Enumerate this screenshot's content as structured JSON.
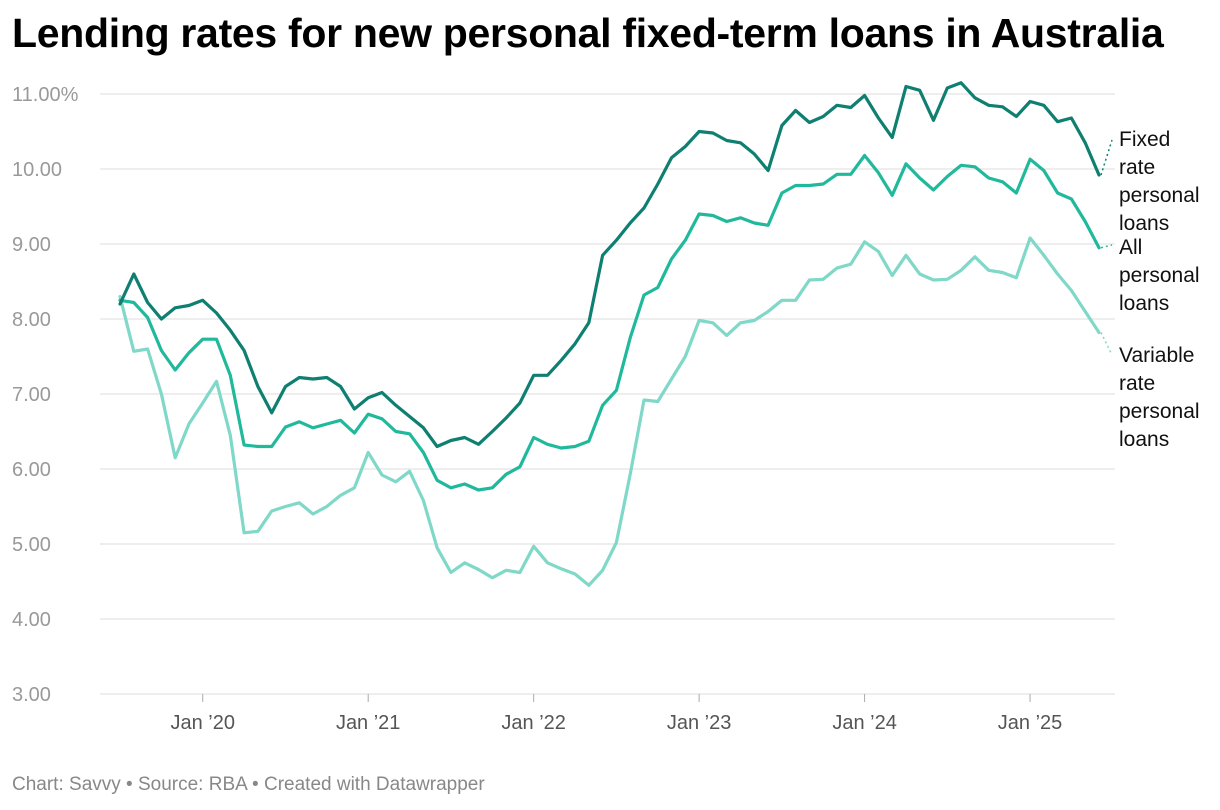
{
  "title": "Lending rates for new personal fixed-term loans in Australia",
  "footer": {
    "chart_credit": "Chart: Savvy",
    "source": "Source: RBA",
    "tool": "Created with Datawrapper",
    "separator": " • "
  },
  "colors": {
    "fixed": "#0e7f70",
    "all": "#21b99c",
    "variable": "#7fd8c8",
    "grid": "#dddddd",
    "axis_text": "#999999"
  },
  "chart_data": {
    "type": "line",
    "title": "Lending rates for new personal fixed-term loans in Australia",
    "xlabel": "",
    "ylabel": "",
    "ylim": [
      3.0,
      11.0
    ],
    "yticks": [
      {
        "value": 11,
        "label": "11.00%"
      },
      {
        "value": 10,
        "label": "10.00"
      },
      {
        "value": 9,
        "label": "9.00"
      },
      {
        "value": 8,
        "label": "8.00"
      },
      {
        "value": 7,
        "label": "7.00"
      },
      {
        "value": 6,
        "label": "6.00"
      },
      {
        "value": 5,
        "label": "5.00"
      },
      {
        "value": 4,
        "label": "4.00"
      },
      {
        "value": 3,
        "label": "3.00"
      }
    ],
    "xticks": [
      {
        "date": "2020-01",
        "label": "Jan ’20"
      },
      {
        "date": "2021-01",
        "label": "Jan ’21"
      },
      {
        "date": "2022-01",
        "label": "Jan ’22"
      },
      {
        "date": "2023-01",
        "label": "Jan ’23"
      },
      {
        "date": "2024-01",
        "label": "Jan ’24"
      },
      {
        "date": "2025-01",
        "label": "Jan ’25"
      }
    ],
    "x_range": [
      "2019-07",
      "2025-06"
    ],
    "grid": true,
    "legend": "direct labels at line ends",
    "x": [
      "2019-07",
      "2019-08",
      "2019-09",
      "2019-10",
      "2019-11",
      "2019-12",
      "2020-01",
      "2020-02",
      "2020-03",
      "2020-04",
      "2020-05",
      "2020-06",
      "2020-07",
      "2020-08",
      "2020-09",
      "2020-10",
      "2020-11",
      "2020-12",
      "2021-01",
      "2021-02",
      "2021-03",
      "2021-04",
      "2021-05",
      "2021-06",
      "2021-07",
      "2021-08",
      "2021-09",
      "2021-10",
      "2021-11",
      "2021-12",
      "2022-01",
      "2022-02",
      "2022-03",
      "2022-04",
      "2022-05",
      "2022-06",
      "2022-07",
      "2022-08",
      "2022-09",
      "2022-10",
      "2022-11",
      "2022-12",
      "2023-01",
      "2023-02",
      "2023-03",
      "2023-04",
      "2023-05",
      "2023-06",
      "2023-07",
      "2023-08",
      "2023-09",
      "2023-10",
      "2023-11",
      "2023-12",
      "2024-01",
      "2024-02",
      "2024-03",
      "2024-04",
      "2024-05",
      "2024-06",
      "2024-07",
      "2024-08",
      "2024-09",
      "2024-10",
      "2024-11",
      "2024-12",
      "2025-01",
      "2025-02",
      "2025-03",
      "2025-04",
      "2025-05",
      "2025-06"
    ],
    "series": [
      {
        "name": "Fixed rate personal loans",
        "label_lines": [
          "Fixed",
          "rate",
          "personal",
          "loans"
        ],
        "color": "#0e7f70",
        "values": [
          8.2,
          8.6,
          8.22,
          8.0,
          8.15,
          8.18,
          8.25,
          8.08,
          7.85,
          7.58,
          7.1,
          6.75,
          7.1,
          7.22,
          7.2,
          7.22,
          7.1,
          6.8,
          6.95,
          7.02,
          6.85,
          6.7,
          6.55,
          6.3,
          6.38,
          6.42,
          6.33,
          6.5,
          6.68,
          6.88,
          7.25,
          7.25,
          7.45,
          7.67,
          7.95,
          8.85,
          9.05,
          9.28,
          9.48,
          9.8,
          10.15,
          10.3,
          10.5,
          10.48,
          10.38,
          10.35,
          10.2,
          9.98,
          10.58,
          10.78,
          10.62,
          10.7,
          10.85,
          10.82,
          10.98,
          10.68,
          10.42,
          11.1,
          11.05,
          10.65,
          11.08,
          11.15,
          10.95,
          10.85,
          10.83,
          10.7,
          10.9,
          10.85,
          10.63,
          10.68,
          10.35,
          9.92
        ]
      },
      {
        "name": "All personal loans",
        "label_lines": [
          "All",
          "personal",
          "loans"
        ],
        "color": "#21b99c",
        "values": [
          8.25,
          8.22,
          8.02,
          7.58,
          7.32,
          7.55,
          7.73,
          7.73,
          7.25,
          6.32,
          6.3,
          6.3,
          6.56,
          6.63,
          6.55,
          6.6,
          6.65,
          6.48,
          6.73,
          6.67,
          6.5,
          6.47,
          6.22,
          5.85,
          5.75,
          5.8,
          5.72,
          5.75,
          5.93,
          6.03,
          6.42,
          6.33,
          6.28,
          6.3,
          6.37,
          6.85,
          7.05,
          7.75,
          8.32,
          8.42,
          8.8,
          9.05,
          9.4,
          9.38,
          9.3,
          9.35,
          9.28,
          9.25,
          9.68,
          9.78,
          9.78,
          9.8,
          9.93,
          9.93,
          10.18,
          9.95,
          9.65,
          10.07,
          9.88,
          9.72,
          9.9,
          10.05,
          10.03,
          9.88,
          9.83,
          9.68,
          10.13,
          9.98,
          9.68,
          9.6,
          9.3,
          8.95
        ]
      },
      {
        "name": "Variable rate personal loans",
        "label_lines": [
          "Variable",
          "rate",
          "personal",
          "loans"
        ],
        "color": "#7fd8c8",
        "values": [
          8.3,
          7.57,
          7.6,
          7.0,
          6.15,
          6.6,
          6.88,
          7.17,
          6.45,
          5.15,
          5.17,
          5.44,
          5.5,
          5.55,
          5.4,
          5.5,
          5.65,
          5.75,
          6.22,
          5.92,
          5.83,
          5.97,
          5.58,
          4.95,
          4.62,
          4.75,
          4.66,
          4.55,
          4.65,
          4.62,
          4.97,
          4.75,
          4.67,
          4.6,
          4.45,
          4.65,
          5.02,
          5.93,
          6.92,
          6.9,
          7.2,
          7.5,
          7.98,
          7.95,
          7.78,
          7.95,
          7.98,
          8.1,
          8.25,
          8.25,
          8.52,
          8.53,
          8.68,
          8.73,
          9.03,
          8.9,
          8.58,
          8.85,
          8.6,
          8.52,
          8.53,
          8.65,
          8.83,
          8.65,
          8.62,
          8.55,
          9.08,
          8.85,
          8.6,
          8.38,
          8.1,
          7.82
        ]
      }
    ]
  }
}
